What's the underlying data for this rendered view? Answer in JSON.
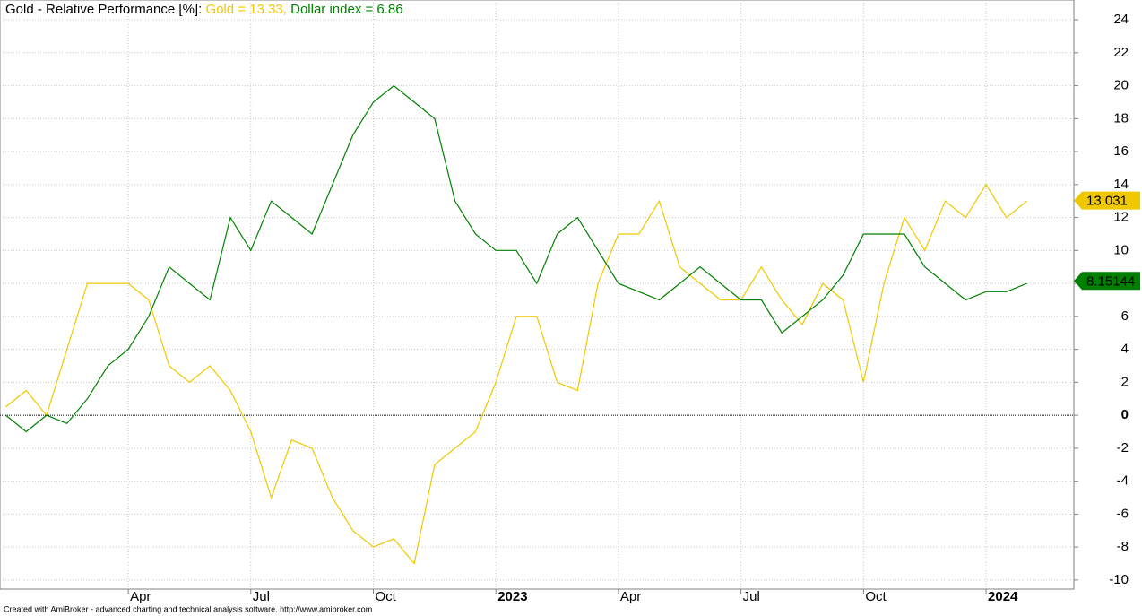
{
  "chart_data": {
    "type": "line",
    "title": "Gold - Relative Performance [%]:",
    "footer": "Created with AmiBroker - advanced charting and technical analysis software. http://www.amibroker.com",
    "x": [
      0,
      0.5,
      1,
      1.5,
      2,
      2.5,
      3,
      3.5,
      4,
      4.5,
      5,
      5.5,
      6,
      6.5,
      7,
      7.5,
      8,
      8.5,
      9,
      9.5,
      10,
      10.5,
      11,
      11.5,
      12,
      12.5,
      13,
      13.5,
      14,
      14.5,
      15,
      15.5,
      16,
      16.5,
      17,
      17.5,
      18,
      18.5,
      19,
      19.5,
      20,
      20.5,
      21,
      21.5,
      22,
      22.5,
      23,
      23.5,
      24,
      24.5,
      25
    ],
    "xlim": [
      -0.14,
      26.15
    ],
    "xticks": [
      {
        "value": 3,
        "label": "Apr"
      },
      {
        "value": 6,
        "label": "Jul"
      },
      {
        "value": 9,
        "label": "Oct"
      },
      {
        "value": 12,
        "label": "2023"
      },
      {
        "value": 15,
        "label": "Apr"
      },
      {
        "value": 18,
        "label": "Jul"
      },
      {
        "value": 21,
        "label": "Oct"
      },
      {
        "value": 24,
        "label": "2024"
      }
    ],
    "ylim": [
      -10.55,
      25.2
    ],
    "yticks": [
      -10,
      -8,
      -6,
      -4,
      -2,
      0,
      2,
      4,
      6,
      8,
      10,
      12,
      14,
      16,
      18,
      20,
      22,
      24
    ],
    "grid": true,
    "series": [
      {
        "name": "Gold",
        "color": "#f0c800",
        "header_label": "= 13.33,",
        "last_label": 13.031,
        "values": [
          0.5,
          1.5,
          0,
          4,
          8,
          8,
          8,
          7,
          3,
          2,
          3,
          1.5,
          -1,
          -5,
          -1.5,
          -2,
          -5,
          -7,
          -8,
          -7.5,
          -9,
          -3,
          -2,
          -1,
          2,
          6,
          6,
          2,
          1.5,
          8,
          11,
          11,
          13,
          9,
          8,
          7,
          7,
          9,
          7,
          5.5,
          8,
          7,
          2,
          8,
          12,
          10,
          13,
          12,
          14,
          12,
          13
        ]
      },
      {
        "name": "Dollar index",
        "color": "#008000",
        "header_label": "= 6.86",
        "last_label": 8.15144,
        "values": [
          0,
          -1,
          0,
          -0.5,
          1,
          3,
          4,
          6,
          9,
          8,
          7,
          12,
          10,
          13,
          12,
          11,
          14,
          17,
          19,
          20,
          19,
          18,
          13,
          11,
          10,
          10,
          8,
          11,
          12,
          10,
          8,
          7.5,
          7,
          8,
          9,
          8,
          7,
          7,
          5,
          6,
          7,
          8.5,
          11,
          11,
          11,
          9,
          8,
          7,
          7.5,
          7.5,
          8
        ]
      }
    ]
  }
}
